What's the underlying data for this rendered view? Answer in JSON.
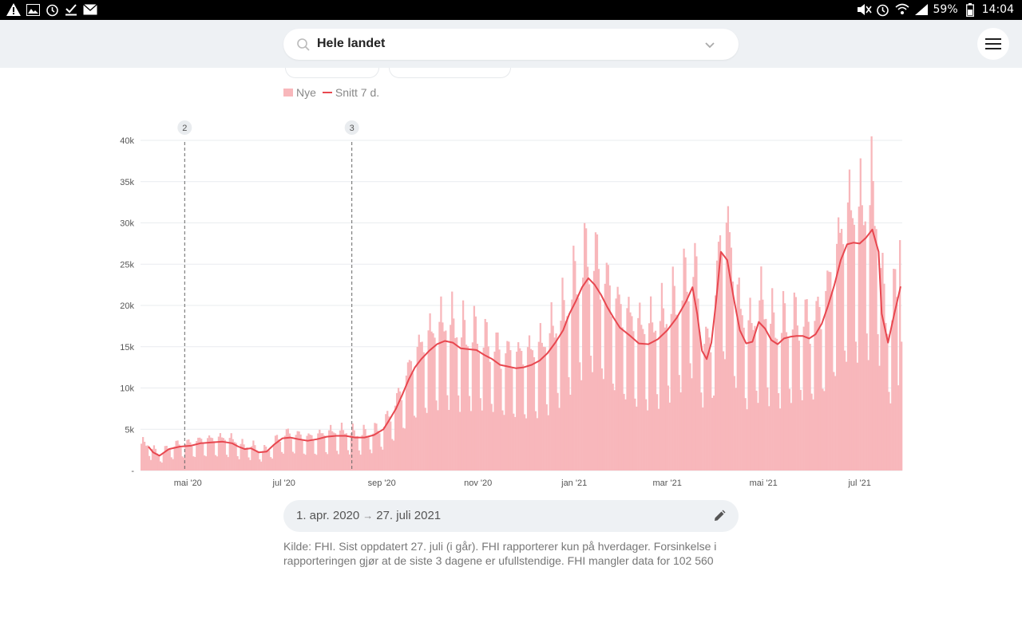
{
  "status_bar": {
    "left_icons": [
      "warning-icon",
      "image-icon",
      "alarm-icon",
      "check-icon",
      "mail-icon"
    ],
    "battery": "59%",
    "time": "14:04"
  },
  "search": {
    "value": "Hele landet"
  },
  "legend": {
    "bars": "Nye",
    "line": "Snitt 7 d."
  },
  "colors": {
    "bar": "#f8b7bb",
    "line": "#e8474f",
    "grid": "#e9ecef",
    "marker": "#e9ecef"
  },
  "chart_data": {
    "type": "bar",
    "y_ticks": [
      "-",
      "5k",
      "10k",
      "15k",
      "20k",
      "25k",
      "30k",
      "35k",
      "40k"
    ],
    "ylim": [
      0,
      40000
    ],
    "x_ticks": [
      "mai '20",
      "jul '20",
      "sep '20",
      "nov '20",
      "jan '21",
      "mar '21",
      "mai '21",
      "jul '21"
    ],
    "x_tick_positions": [
      30,
      91,
      153,
      214,
      275,
      334,
      395,
      456
    ],
    "markers": [
      {
        "label": "2",
        "day": 28
      },
      {
        "label": "3",
        "day": 134
      }
    ],
    "days_total": 483,
    "series": [
      {
        "name": "Nye",
        "kind": "bar"
      },
      {
        "name": "Snitt 7 d.",
        "kind": "line",
        "points": [
          [
            5,
            2900
          ],
          [
            8,
            2200
          ],
          [
            12,
            1800
          ],
          [
            18,
            2600
          ],
          [
            25,
            2900
          ],
          [
            32,
            3000
          ],
          [
            38,
            3300
          ],
          [
            45,
            3400
          ],
          [
            52,
            3500
          ],
          [
            58,
            3300
          ],
          [
            62,
            2900
          ],
          [
            66,
            2600
          ],
          [
            70,
            2700
          ],
          [
            75,
            2200
          ],
          [
            80,
            2300
          ],
          [
            85,
            3200
          ],
          [
            90,
            3900
          ],
          [
            95,
            4000
          ],
          [
            100,
            3800
          ],
          [
            106,
            3600
          ],
          [
            112,
            3800
          ],
          [
            118,
            4100
          ],
          [
            124,
            4200
          ],
          [
            130,
            4200
          ],
          [
            136,
            4000
          ],
          [
            142,
            4000
          ],
          [
            148,
            4300
          ],
          [
            154,
            5000
          ],
          [
            158,
            6200
          ],
          [
            162,
            7500
          ],
          [
            166,
            9200
          ],
          [
            170,
            11000
          ],
          [
            174,
            12500
          ],
          [
            178,
            13500
          ],
          [
            183,
            14500
          ],
          [
            188,
            15300
          ],
          [
            193,
            15700
          ],
          [
            198,
            15500
          ],
          [
            203,
            14800
          ],
          [
            208,
            14700
          ],
          [
            213,
            14600
          ],
          [
            218,
            14000
          ],
          [
            223,
            13500
          ],
          [
            228,
            12800
          ],
          [
            233,
            12600
          ],
          [
            238,
            12400
          ],
          [
            243,
            12500
          ],
          [
            248,
            12800
          ],
          [
            253,
            13300
          ],
          [
            258,
            14200
          ],
          [
            263,
            15500
          ],
          [
            268,
            17000
          ],
          [
            272,
            19000
          ],
          [
            276,
            20500
          ],
          [
            280,
            22200
          ],
          [
            284,
            23300
          ],
          [
            288,
            22500
          ],
          [
            292,
            21300
          ],
          [
            296,
            19800
          ],
          [
            300,
            18500
          ],
          [
            304,
            17300
          ],
          [
            310,
            16400
          ],
          [
            316,
            15400
          ],
          [
            322,
            15300
          ],
          [
            328,
            15900
          ],
          [
            334,
            17000
          ],
          [
            340,
            18500
          ],
          [
            346,
            20500
          ],
          [
            350,
            22200
          ],
          [
            353,
            19000
          ],
          [
            356,
            14500
          ],
          [
            359,
            13500
          ],
          [
            362,
            15500
          ],
          [
            365,
            20500
          ],
          [
            368,
            26500
          ],
          [
            372,
            25500
          ],
          [
            376,
            21000
          ],
          [
            380,
            17000
          ],
          [
            384,
            15400
          ],
          [
            388,
            15600
          ],
          [
            392,
            18000
          ],
          [
            396,
            17200
          ],
          [
            400,
            15800
          ],
          [
            404,
            15300
          ],
          [
            408,
            16000
          ],
          [
            412,
            16200
          ],
          [
            416,
            16300
          ],
          [
            420,
            16300
          ],
          [
            424,
            16000
          ],
          [
            428,
            16500
          ],
          [
            432,
            17800
          ],
          [
            436,
            20000
          ],
          [
            440,
            22500
          ],
          [
            444,
            25500
          ],
          [
            448,
            27400
          ],
          [
            452,
            27600
          ],
          [
            456,
            27500
          ],
          [
            460,
            28200
          ],
          [
            464,
            29200
          ],
          [
            468,
            26500
          ],
          [
            470,
            19000
          ],
          [
            474,
            15500
          ],
          [
            478,
            19000
          ],
          [
            482,
            22300
          ]
        ]
      }
    ]
  },
  "range": {
    "start": "1. apr. 2020",
    "arrow": "→",
    "end": "27. juli 2021"
  },
  "source_text": "Kilde: FHI. Sist oppdatert 27. juli (i går). FHI rapporterer kun på hverdager. Forsinkelse i rapporteringen gjør at de siste 3 dagene er ufullstendige. FHI mangler data for 102 560"
}
